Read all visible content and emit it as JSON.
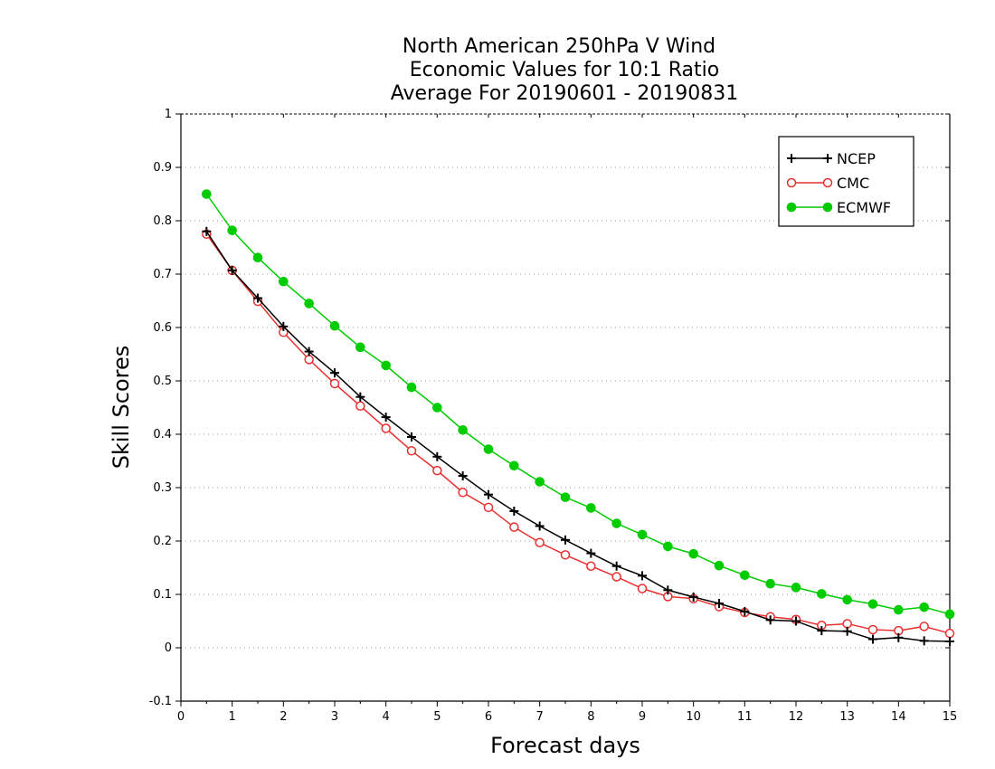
{
  "chart_data": {
    "type": "line",
    "title_lines": [
      "North American 250hPa V Wind",
      "Economic Values for 10:1 Ratio",
      "Average For 20190601 - 20190831"
    ],
    "xlabel": "Forecast days",
    "ylabel": "Skill Scores",
    "xlim": [
      0,
      15
    ],
    "ylim": [
      -0.1,
      1
    ],
    "xticks": [
      0,
      1,
      2,
      3,
      4,
      5,
      6,
      7,
      8,
      9,
      10,
      11,
      12,
      13,
      14,
      15
    ],
    "xtick_labels": [
      "0",
      "1",
      "2",
      "3",
      "4",
      "5",
      "6",
      "7",
      "8",
      "9",
      "10",
      "11",
      "12",
      "13",
      "14",
      "15"
    ],
    "yticks": [
      -0.1,
      0,
      0.1,
      0.2,
      0.3,
      0.4,
      0.5,
      0.6,
      0.7,
      0.8,
      0.9,
      1
    ],
    "ytick_labels": [
      "-0.1",
      "0",
      "0.1",
      "0.2",
      "0.3",
      "0.4",
      "0.5",
      "0.6",
      "0.7",
      "0.8",
      "0.9",
      "1"
    ],
    "grid": true,
    "legend_position": "top-right",
    "x": [
      0.5,
      1,
      1.5,
      2,
      2.5,
      3,
      3.5,
      4,
      4.5,
      5,
      5.5,
      6,
      6.5,
      7,
      7.5,
      8,
      8.5,
      9,
      9.5,
      10,
      10.5,
      11,
      11.5,
      12,
      12.5,
      13,
      13.5,
      14,
      14.5,
      15
    ],
    "series": [
      {
        "name": "NCEP",
        "color": "#000000",
        "marker": "plus",
        "values": [
          0.78,
          0.707,
          0.655,
          0.602,
          0.555,
          0.515,
          0.47,
          0.432,
          0.395,
          0.358,
          0.322,
          0.287,
          0.256,
          0.228,
          0.202,
          0.177,
          0.153,
          0.135,
          0.108,
          0.095,
          0.083,
          0.068,
          0.052,
          0.05,
          0.032,
          0.031,
          0.016,
          0.019,
          0.013,
          0.012
        ]
      },
      {
        "name": "CMC",
        "color": "#e8302f",
        "marker": "open-circle",
        "values": [
          0.775,
          0.707,
          0.649,
          0.591,
          0.54,
          0.495,
          0.453,
          0.411,
          0.369,
          0.332,
          0.291,
          0.263,
          0.226,
          0.197,
          0.174,
          0.153,
          0.133,
          0.111,
          0.096,
          0.092,
          0.077,
          0.066,
          0.058,
          0.053,
          0.042,
          0.045,
          0.034,
          0.032,
          0.04,
          0.027
        ]
      },
      {
        "name": "ECMWF",
        "color": "#00cc00",
        "marker": "filled-circle",
        "values": [
          0.85,
          0.782,
          0.731,
          0.686,
          0.645,
          0.603,
          0.563,
          0.529,
          0.488,
          0.45,
          0.408,
          0.372,
          0.341,
          0.311,
          0.282,
          0.262,
          0.233,
          0.212,
          0.19,
          0.176,
          0.154,
          0.136,
          0.12,
          0.113,
          0.101,
          0.09,
          0.082,
          0.071,
          0.076,
          0.063
        ]
      }
    ]
  }
}
